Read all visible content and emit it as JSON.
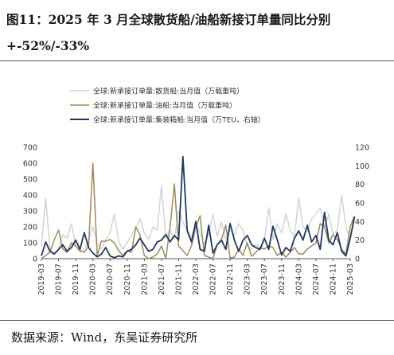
{
  "header": {
    "title": "图11：2025 年 3 月全球散货船/油船新接订单量同比分别+-52%/-33%"
  },
  "footer": {
    "source": "数据来源：Wind，东吴证券研究所"
  },
  "chart_data": {
    "type": "line",
    "title": "",
    "left_axis": {
      "min": 0,
      "max": 700,
      "ticks": [
        0,
        100,
        200,
        300,
        400,
        500,
        600,
        700
      ]
    },
    "right_axis": {
      "min": 0,
      "max": 120,
      "ticks": [
        0,
        20,
        40,
        60,
        80,
        100,
        120
      ]
    },
    "x_tick_labels": [
      "2019-03",
      "2019-07",
      "2019-11",
      "2020-03",
      "2020-07",
      "2020-11",
      "2021-03",
      "2021-07",
      "2021-11",
      "2022-03",
      "2022-07",
      "2022-11",
      "2023-03",
      "2023-07",
      "2023-11",
      "2024-03",
      "2024-07",
      "2024-11",
      "2025-03"
    ],
    "x_start": "2019-03",
    "x_end": "2025-03",
    "grid": false,
    "legend_position": "top",
    "series": [
      {
        "name": "全球:新承接订单量:散货船:当月值（万载重吨）",
        "axis": "left",
        "color": "#d4d4d4",
        "values": [
          80,
          380,
          60,
          40,
          60,
          150,
          130,
          220,
          80,
          40,
          60,
          110,
          200,
          100,
          60,
          120,
          160,
          280,
          110,
          60,
          100,
          150,
          190,
          250,
          160,
          120,
          200,
          180,
          460,
          130,
          180,
          120,
          300,
          230,
          180,
          130,
          220,
          160,
          90,
          150,
          280,
          140,
          230,
          120,
          180,
          150,
          220,
          180,
          80,
          60,
          90,
          70,
          120,
          320,
          120,
          220,
          160,
          280,
          180,
          140,
          380,
          200,
          170,
          250,
          280,
          320,
          200,
          280,
          150,
          180,
          400,
          200,
          120,
          260
        ]
      },
      {
        "name": "全球:新承接订单量:油船:当月值（万载重吨）",
        "axis": "left",
        "color": "#9e8b58",
        "values": [
          0,
          20,
          40,
          120,
          180,
          60,
          40,
          100,
          80,
          50,
          40,
          80,
          600,
          20,
          110,
          110,
          120,
          100,
          50,
          20,
          50,
          40,
          200,
          150,
          20,
          0,
          10,
          30,
          80,
          0,
          200,
          470,
          80,
          50,
          20,
          80,
          200,
          270,
          20,
          10,
          0,
          90,
          120,
          210,
          5,
          10,
          60,
          20,
          100,
          15,
          40,
          70,
          60,
          80,
          70,
          20,
          40,
          10,
          40,
          70,
          30,
          30,
          60,
          80,
          100,
          220,
          200,
          100,
          150,
          120,
          60,
          30,
          200,
          270
        ]
      },
      {
        "name": "全球:新承接订单量:集装箱船:当月值（万TEU，右轴）",
        "axis": "right",
        "color": "#1f3864",
        "values": [
          3,
          18,
          8,
          5,
          10,
          15,
          8,
          12,
          20,
          10,
          28,
          12,
          6,
          2,
          5,
          12,
          3,
          1,
          3,
          2,
          8,
          10,
          15,
          22,
          15,
          8,
          10,
          18,
          20,
          26,
          18,
          25,
          20,
          110,
          30,
          18,
          40,
          10,
          8,
          36,
          6,
          15,
          20,
          10,
          38,
          20,
          8,
          20,
          25,
          15,
          12,
          10,
          22,
          10,
          35,
          20,
          4,
          12,
          8,
          22,
          30,
          20,
          36,
          18,
          25,
          10,
          50,
          20,
          15,
          28,
          8,
          3,
          22,
          45
        ]
      }
    ]
  }
}
